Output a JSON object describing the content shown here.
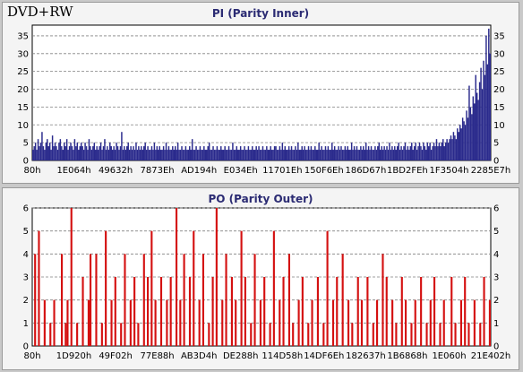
{
  "disc_type": "DVD+RW",
  "colors": {
    "pi_bar": "#2a2a8c",
    "po_bar": "#d41010",
    "grid": "#808080",
    "panel_bg": "#f4f4f4"
  },
  "chart_data": [
    {
      "type": "bar",
      "title": "PI (Parity Inner)",
      "ylim": [
        0,
        38
      ],
      "y_ticks": [
        0,
        5,
        10,
        15,
        20,
        25,
        30,
        35
      ],
      "right_axis_labels": true,
      "grid": "horizontal-dashed",
      "x_tick_labels": [
        "80h",
        "1E064h",
        "49632h",
        "7873Eh",
        "AD194h",
        "E034Eh",
        "11701Eh",
        "150F6Eh",
        "186D67h",
        "1BD2FEh",
        "1F3504h",
        "2285E7h"
      ],
      "samples": [
        3,
        4,
        5,
        3,
        6,
        4,
        5,
        8,
        4,
        3,
        5,
        6,
        4,
        5,
        3,
        7,
        4,
        5,
        4,
        3,
        5,
        6,
        4,
        3,
        5,
        4,
        6,
        3,
        4,
        5,
        4,
        3,
        6,
        4,
        5,
        3,
        4,
        5,
        4,
        3,
        5,
        4,
        3,
        6,
        4,
        3,
        4,
        5,
        3,
        4,
        3,
        4,
        5,
        3,
        4,
        6,
        3,
        4,
        3,
        5,
        4,
        3,
        4,
        3,
        5,
        4,
        3,
        4,
        8,
        3,
        4,
        3,
        4,
        5,
        3,
        4,
        3,
        4,
        3,
        5,
        3,
        4,
        3,
        4,
        3,
        4,
        5,
        3,
        4,
        3,
        3,
        4,
        3,
        5,
        3,
        4,
        3,
        4,
        3,
        3,
        4,
        3,
        5,
        3,
        4,
        3,
        3,
        4,
        3,
        4,
        3,
        5,
        3,
        3,
        4,
        3,
        3,
        4,
        3,
        3,
        4,
        3,
        6,
        3,
        3,
        4,
        3,
        3,
        4,
        3,
        3,
        4,
        3,
        3,
        4,
        5,
        3,
        3,
        4,
        3,
        3,
        4,
        3,
        3,
        4,
        3,
        3,
        4,
        3,
        3,
        4,
        3,
        3,
        5,
        3,
        3,
        4,
        3,
        3,
        4,
        3,
        3,
        4,
        3,
        3,
        4,
        3,
        3,
        4,
        3,
        3,
        4,
        3,
        4,
        3,
        3,
        4,
        3,
        3,
        4,
        3,
        3,
        4,
        3,
        3,
        4,
        4,
        3,
        3,
        4,
        3,
        5,
        3,
        4,
        3,
        3,
        4,
        3,
        4,
        3,
        3,
        4,
        3,
        5,
        3,
        3,
        4,
        3,
        4,
        3,
        3,
        4,
        3,
        4,
        3,
        3,
        4,
        3,
        3,
        5,
        3,
        4,
        3,
        3,
        4,
        3,
        4,
        3,
        3,
        5,
        3,
        4,
        3,
        3,
        4,
        3,
        4,
        3,
        3,
        4,
        3,
        4,
        3,
        3,
        5,
        3,
        4,
        3,
        4,
        3,
        3,
        4,
        3,
        4,
        3,
        5,
        3,
        4,
        3,
        4,
        3,
        3,
        4,
        3,
        4,
        5,
        3,
        4,
        3,
        4,
        3,
        4,
        3,
        5,
        3,
        4,
        3,
        4,
        3,
        4,
        5,
        3,
        4,
        3,
        4,
        5,
        3,
        4,
        3,
        4,
        5,
        3,
        4,
        5,
        3,
        4,
        5,
        4,
        3,
        5,
        4,
        3,
        5,
        4,
        5,
        3,
        4,
        5,
        4,
        6,
        4,
        5,
        4,
        5,
        6,
        4,
        5,
        6,
        5,
        6,
        7,
        6,
        8,
        7,
        6,
        9,
        8,
        10,
        9,
        12,
        11,
        10,
        14,
        12,
        21,
        15,
        13,
        18,
        16,
        24,
        19,
        17,
        22,
        26,
        20,
        28,
        24,
        35,
        27,
        37,
        30
      ]
    },
    {
      "type": "bar",
      "title": "PO (Parity Outer)",
      "ylim": [
        0,
        6
      ],
      "y_ticks": [
        0,
        1,
        2,
        3,
        4,
        5,
        6
      ],
      "right_axis_labels": true,
      "grid": "horizontal-dashed",
      "x_tick_labels": [
        "80h",
        "1D920h",
        "49F02h",
        "77E88h",
        "AB3D4h",
        "DE288h",
        "114D58h",
        "14DF6Eh",
        "182637h",
        "1B6868h",
        "1E060h",
        "21E402h"
      ],
      "samples": [
        0,
        4,
        0,
        5,
        0,
        0,
        2,
        0,
        0,
        1,
        0,
        2,
        0,
        0,
        0,
        4,
        0,
        1,
        2,
        0,
        6,
        0,
        0,
        1,
        0,
        0,
        3,
        0,
        0,
        2,
        4,
        0,
        0,
        4,
        0,
        0,
        1,
        0,
        5,
        0,
        0,
        2,
        0,
        3,
        0,
        0,
        1,
        0,
        4,
        0,
        0,
        2,
        0,
        3,
        0,
        1,
        0,
        0,
        4,
        0,
        3,
        0,
        5,
        0,
        2,
        0,
        0,
        3,
        0,
        0,
        2,
        0,
        3,
        0,
        0,
        6,
        0,
        2,
        0,
        4,
        0,
        0,
        3,
        0,
        5,
        0,
        0,
        2,
        0,
        4,
        0,
        0,
        1,
        0,
        3,
        0,
        6,
        0,
        0,
        2,
        0,
        4,
        0,
        0,
        3,
        0,
        2,
        0,
        0,
        5,
        0,
        3,
        0,
        0,
        1,
        0,
        4,
        0,
        0,
        2,
        0,
        3,
        0,
        0,
        1,
        0,
        5,
        0,
        0,
        2,
        0,
        3,
        0,
        0,
        4,
        0,
        1,
        0,
        0,
        2,
        0,
        3,
        0,
        0,
        1,
        0,
        2,
        0,
        0,
        3,
        0,
        0,
        1,
        0,
        5,
        0,
        0,
        2,
        0,
        3,
        0,
        0,
        4,
        0,
        0,
        2,
        0,
        1,
        0,
        0,
        3,
        0,
        2,
        0,
        0,
        3,
        0,
        0,
        1,
        0,
        2,
        0,
        0,
        4,
        0,
        3,
        0,
        0,
        2,
        0,
        1,
        0,
        0,
        3,
        0,
        2,
        0,
        0,
        1,
        0,
        2,
        0,
        0,
        3,
        0,
        0,
        1,
        0,
        2,
        0,
        3,
        0,
        0,
        1,
        0,
        2,
        0,
        0,
        0,
        3,
        0,
        1,
        0,
        0,
        2,
        0,
        3,
        0,
        1,
        0,
        0,
        2,
        0,
        0,
        1,
        0,
        3,
        0,
        0,
        2
      ]
    }
  ]
}
